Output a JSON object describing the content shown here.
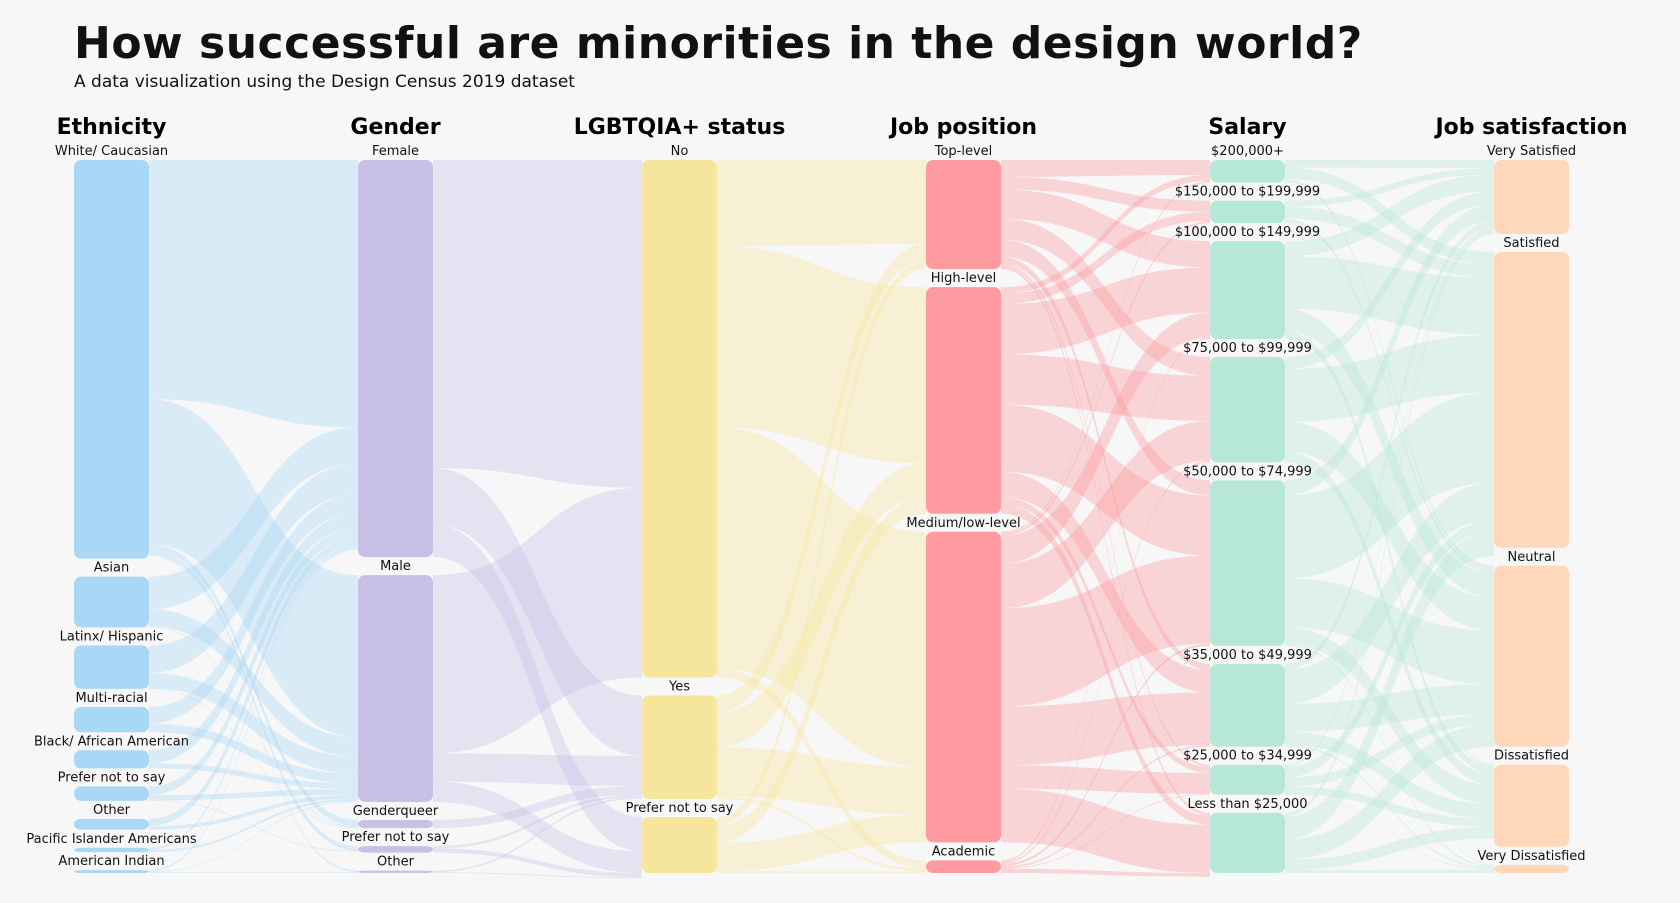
{
  "title": "How successful are minorities in the design world?",
  "subtitle": "A data visualization using the Design Census 2019 dataset",
  "chart_data": {
    "type": "sankey",
    "columns": [
      {
        "name": "Ethnicity",
        "color": "#a8d8f5",
        "linkColor": "#a8d8f5",
        "nodes": [
          {
            "label": "White/ Caucasian",
            "value": 55
          },
          {
            "label": "Asian",
            "value": 7
          },
          {
            "label": "Latinx/ Hispanic",
            "value": 6
          },
          {
            "label": "Multi-racial",
            "value": 3.5
          },
          {
            "label": "Black/ African American",
            "value": 2.5
          },
          {
            "label": "Prefer not to say",
            "value": 2
          },
          {
            "label": "Other",
            "value": 1.5
          },
          {
            "label": "Pacific Islander Americans",
            "value": 0.6
          },
          {
            "label": "American Indian",
            "value": 0.4
          }
        ]
      },
      {
        "name": "Gender",
        "color": "#c9c0e8",
        "linkColor": "#c9c0e8",
        "nodes": [
          {
            "label": "Female",
            "value": 49
          },
          {
            "label": "Male",
            "value": 28
          },
          {
            "label": "Genderqueer",
            "value": 1
          },
          {
            "label": "Prefer not to say",
            "value": 0.8
          },
          {
            "label": "Other",
            "value": 0.3
          }
        ]
      },
      {
        "name": "LGBTQIA+ status",
        "color": "#f6e69c",
        "linkColor": "#f6e69c",
        "nodes": [
          {
            "label": "No",
            "value": 60
          },
          {
            "label": "Yes",
            "value": 12
          },
          {
            "label": "Prefer not to say",
            "value": 6.5
          }
        ]
      },
      {
        "name": "Job position",
        "color": "#fd9ba0",
        "linkColor": "#fd9ba0",
        "nodes": [
          {
            "label": "Top-level",
            "value": 13
          },
          {
            "label": "High-level",
            "value": 27
          },
          {
            "label": "Medium/low-level",
            "value": 37
          },
          {
            "label": "Academic",
            "value": 1.5
          }
        ]
      },
      {
        "name": "Salary",
        "color": "#b7e8d6",
        "linkColor": "#b7e8d6",
        "nodes": [
          {
            "label": "$200,000+",
            "value": 3
          },
          {
            "label": "$150,000 to $199,999",
            "value": 3
          },
          {
            "label": "$100,000 to $149,999",
            "value": 13
          },
          {
            "label": "$75,000 to $99,999",
            "value": 14
          },
          {
            "label": "$50,000 to $74,999",
            "value": 22
          },
          {
            "label": "$35,000 to $49,999",
            "value": 11
          },
          {
            "label": "$25,000 to $34,999",
            "value": 4
          },
          {
            "label": "Less than $25,000",
            "value": 8
          }
        ]
      },
      {
        "name": "Job satisfaction",
        "color": "#ffd7bb",
        "nodes": [
          {
            "label": "Very Satisfied",
            "value": 9
          },
          {
            "label": "Satisfied",
            "value": 36
          },
          {
            "label": "Neutral",
            "value": 22
          },
          {
            "label": "Dissatisfied",
            "value": 10
          },
          {
            "label": "Very Dissatisfied",
            "value": 1
          }
        ]
      }
    ],
    "links": [
      [
        {
          "s": 0,
          "t": 0,
          "v": 33
        },
        {
          "s": 0,
          "t": 1,
          "v": 20
        },
        {
          "s": 0,
          "t": 2,
          "v": 0.8
        },
        {
          "s": 0,
          "t": 3,
          "v": 0.6
        },
        {
          "s": 0,
          "t": 4,
          "v": 0.2
        },
        {
          "s": 1,
          "t": 0,
          "v": 4.5
        },
        {
          "s": 1,
          "t": 1,
          "v": 2.4
        },
        {
          "s": 1,
          "t": 2,
          "v": 0.1
        },
        {
          "s": 2,
          "t": 0,
          "v": 3.8
        },
        {
          "s": 2,
          "t": 1,
          "v": 2.1
        },
        {
          "s": 2,
          "t": 2,
          "v": 0.1
        },
        {
          "s": 3,
          "t": 0,
          "v": 2.3
        },
        {
          "s": 3,
          "t": 1,
          "v": 1.2
        },
        {
          "s": 4,
          "t": 0,
          "v": 1.8
        },
        {
          "s": 4,
          "t": 1,
          "v": 0.7
        },
        {
          "s": 5,
          "t": 0,
          "v": 1.2
        },
        {
          "s": 5,
          "t": 1,
          "v": 0.7
        },
        {
          "s": 5,
          "t": 3,
          "v": 0.1
        },
        {
          "s": 6,
          "t": 0,
          "v": 1.0
        },
        {
          "s": 6,
          "t": 1,
          "v": 0.5
        },
        {
          "s": 7,
          "t": 0,
          "v": 0.3
        },
        {
          "s": 7,
          "t": 1,
          "v": 0.3
        },
        {
          "s": 8,
          "t": 0,
          "v": 0.2
        },
        {
          "s": 8,
          "t": 1,
          "v": 0.1
        },
        {
          "s": 8,
          "t": 4,
          "v": 0.1
        }
      ],
      [
        {
          "s": 0,
          "t": 0,
          "v": 38
        },
        {
          "s": 0,
          "t": 1,
          "v": 7
        },
        {
          "s": 0,
          "t": 2,
          "v": 4
        },
        {
          "s": 1,
          "t": 0,
          "v": 22
        },
        {
          "s": 1,
          "t": 1,
          "v": 3.5
        },
        {
          "s": 1,
          "t": 2,
          "v": 2.5
        },
        {
          "s": 2,
          "t": 1,
          "v": 1.0
        },
        {
          "s": 3,
          "t": 1,
          "v": 0.3
        },
        {
          "s": 3,
          "t": 2,
          "v": 0.5
        },
        {
          "s": 4,
          "t": 1,
          "v": 0.2
        },
        {
          "s": 4,
          "t": 2,
          "v": 0.1
        }
      ],
      [
        {
          "s": 0,
          "t": 0,
          "v": 10
        },
        {
          "s": 0,
          "t": 1,
          "v": 21
        },
        {
          "s": 0,
          "t": 2,
          "v": 28
        },
        {
          "s": 0,
          "t": 3,
          "v": 1
        },
        {
          "s": 1,
          "t": 0,
          "v": 2
        },
        {
          "s": 1,
          "t": 1,
          "v": 4
        },
        {
          "s": 1,
          "t": 2,
          "v": 5.7
        },
        {
          "s": 1,
          "t": 3,
          "v": 0.3
        },
        {
          "s": 2,
          "t": 0,
          "v": 1
        },
        {
          "s": 2,
          "t": 1,
          "v": 2
        },
        {
          "s": 2,
          "t": 2,
          "v": 3.3
        },
        {
          "s": 2,
          "t": 3,
          "v": 0.2
        }
      ],
      [
        {
          "s": 0,
          "t": 0,
          "v": 2
        },
        {
          "s": 0,
          "t": 1,
          "v": 1.5
        },
        {
          "s": 0,
          "t": 2,
          "v": 3.5
        },
        {
          "s": 0,
          "t": 3,
          "v": 2.5
        },
        {
          "s": 0,
          "t": 4,
          "v": 2
        },
        {
          "s": 0,
          "t": 5,
          "v": 0.8
        },
        {
          "s": 0,
          "t": 6,
          "v": 0.3
        },
        {
          "s": 0,
          "t": 7,
          "v": 0.4
        },
        {
          "s": 1,
          "t": 0,
          "v": 0.8
        },
        {
          "s": 1,
          "t": 1,
          "v": 1.2
        },
        {
          "s": 1,
          "t": 2,
          "v": 6
        },
        {
          "s": 1,
          "t": 3,
          "v": 6
        },
        {
          "s": 1,
          "t": 4,
          "v": 8
        },
        {
          "s": 1,
          "t": 5,
          "v": 3
        },
        {
          "s": 1,
          "t": 6,
          "v": 0.8
        },
        {
          "s": 1,
          "t": 7,
          "v": 1.2
        },
        {
          "s": 2,
          "t": 0,
          "v": 0.2
        },
        {
          "s": 2,
          "t": 1,
          "v": 0.3
        },
        {
          "s": 2,
          "t": 2,
          "v": 3.3
        },
        {
          "s": 2,
          "t": 3,
          "v": 5.3
        },
        {
          "s": 2,
          "t": 4,
          "v": 11.7
        },
        {
          "s": 2,
          "t": 5,
          "v": 7
        },
        {
          "s": 2,
          "t": 6,
          "v": 2.8
        },
        {
          "s": 2,
          "t": 7,
          "v": 6.4
        },
        {
          "s": 3,
          "t": 2,
          "v": 0.2
        },
        {
          "s": 3,
          "t": 3,
          "v": 0.2
        },
        {
          "s": 3,
          "t": 4,
          "v": 0.3
        },
        {
          "s": 3,
          "t": 5,
          "v": 0.2
        },
        {
          "s": 3,
          "t": 6,
          "v": 0.1
        },
        {
          "s": 3,
          "t": 7,
          "v": 0.5
        }
      ],
      [
        {
          "s": 0,
          "t": 0,
          "v": 1
        },
        {
          "s": 0,
          "t": 1,
          "v": 1.5
        },
        {
          "s": 0,
          "t": 2,
          "v": 0.4
        },
        {
          "s": 0,
          "t": 3,
          "v": 0.1
        },
        {
          "s": 1,
          "t": 0,
          "v": 0.8
        },
        {
          "s": 1,
          "t": 1,
          "v": 1.6
        },
        {
          "s": 1,
          "t": 2,
          "v": 0.5
        },
        {
          "s": 1,
          "t": 3,
          "v": 0.1
        },
        {
          "s": 2,
          "t": 0,
          "v": 2
        },
        {
          "s": 2,
          "t": 1,
          "v": 7
        },
        {
          "s": 2,
          "t": 2,
          "v": 3
        },
        {
          "s": 2,
          "t": 3,
          "v": 1
        },
        {
          "s": 3,
          "t": 0,
          "v": 1.6
        },
        {
          "s": 3,
          "t": 1,
          "v": 7
        },
        {
          "s": 3,
          "t": 2,
          "v": 4
        },
        {
          "s": 3,
          "t": 3,
          "v": 1.3
        },
        {
          "s": 3,
          "t": 4,
          "v": 0.1
        },
        {
          "s": 4,
          "t": 0,
          "v": 2
        },
        {
          "s": 4,
          "t": 1,
          "v": 11
        },
        {
          "s": 4,
          "t": 2,
          "v": 6.5
        },
        {
          "s": 4,
          "t": 3,
          "v": 2.3
        },
        {
          "s": 4,
          "t": 4,
          "v": 0.2
        },
        {
          "s": 5,
          "t": 0,
          "v": 0.8
        },
        {
          "s": 5,
          "t": 1,
          "v": 4.5
        },
        {
          "s": 5,
          "t": 2,
          "v": 3.7
        },
        {
          "s": 5,
          "t": 3,
          "v": 1.8
        },
        {
          "s": 5,
          "t": 4,
          "v": 0.2
        },
        {
          "s": 6,
          "t": 0,
          "v": 0.3
        },
        {
          "s": 6,
          "t": 1,
          "v": 1.4
        },
        {
          "s": 6,
          "t": 2,
          "v": 1.2
        },
        {
          "s": 6,
          "t": 3,
          "v": 1
        },
        {
          "s": 6,
          "t": 4,
          "v": 0.1
        },
        {
          "s": 7,
          "t": 0,
          "v": 0.5
        },
        {
          "s": 7,
          "t": 1,
          "v": 3
        },
        {
          "s": 7,
          "t": 2,
          "v": 2.7
        },
        {
          "s": 7,
          "t": 3,
          "v": 1.4
        },
        {
          "s": 7,
          "t": 4,
          "v": 0.4
        }
      ]
    ]
  }
}
